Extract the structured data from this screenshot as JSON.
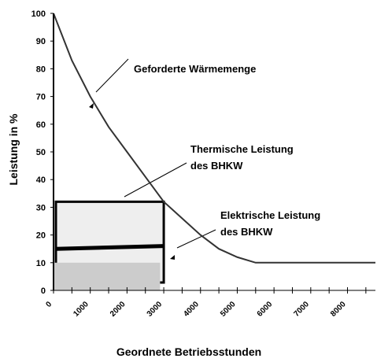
{
  "chart_data": {
    "type": "line",
    "xlabel": "Geordnete Betriebsstunden",
    "ylabel": "Leistung in %",
    "xlim": [
      0,
      8760
    ],
    "ylim": [
      0,
      100
    ],
    "xticks": [
      0,
      1000,
      2000,
      3000,
      4000,
      5000,
      6000,
      7000,
      8000
    ],
    "xminorticks": [
      500,
      1500,
      2500,
      3500,
      4500,
      5500,
      6500,
      7500,
      8500
    ],
    "yticks": [
      0,
      10,
      20,
      30,
      40,
      50,
      60,
      70,
      80,
      90,
      100
    ],
    "series": [
      {
        "name": "Geforderte Wärmemenge",
        "color": "#333333",
        "x": [
          0,
          500,
          1000,
          1500,
          2000,
          2500,
          3000,
          3500,
          4000,
          4500,
          5000,
          5500,
          8760
        ],
        "values": [
          100,
          83,
          70,
          59,
          50,
          41,
          32,
          26,
          20,
          15,
          12,
          10,
          10
        ]
      }
    ],
    "thermal": {
      "label": [
        "Thermische Leistung",
        "des BHKW"
      ],
      "hours": 3000,
      "value": 32,
      "color": "#eeeeee"
    },
    "electrical": {
      "label": [
        "Elektrische Leistung",
        "des BHKW"
      ],
      "hours": 3000,
      "values": [
        15,
        16
      ],
      "color": "#000000"
    },
    "base": {
      "hours": 2900,
      "value": 10,
      "color": "#cccccc"
    }
  }
}
